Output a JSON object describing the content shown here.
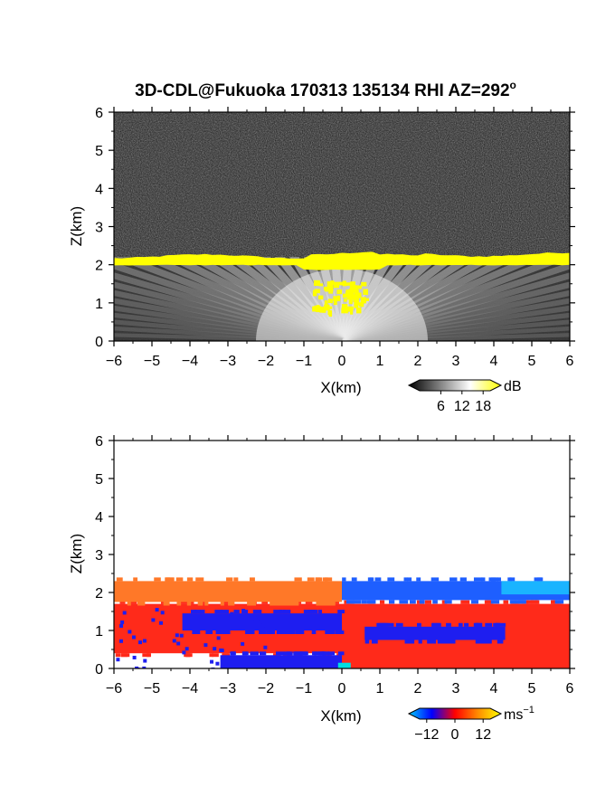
{
  "title": "3D-CDL@Fukuoka 170313 135134 RHI AZ=292",
  "title_superscript": "o",
  "chart_data": [
    {
      "type": "heatmap",
      "variable": "signal intensity",
      "xlabel": "X(km)",
      "ylabel": "Z(km)",
      "xlim": [
        -6,
        6
      ],
      "ylim": [
        0,
        6
      ],
      "xticks": [
        "−6",
        "−5",
        "−4",
        "−3",
        "−2",
        "−1",
        "0",
        "1",
        "2",
        "3",
        "4",
        "5",
        "6"
      ],
      "yticks": [
        "0",
        "1",
        "2",
        "3",
        "4",
        "5",
        "6"
      ],
      "grid": false,
      "background": "noise (dark gray) above 2.2 km",
      "features": [
        {
          "name": "bright layer",
          "z_base_km": [
            2.0,
            2.2
          ],
          "color": "#ffff00"
        },
        {
          "name": "fan of bright rays",
          "x_center_km": 0,
          "z_range_km": [
            0,
            1.9
          ],
          "color": "#e8e8e8"
        },
        {
          "name": "yellow speckles",
          "x_range_km": [
            -0.8,
            0.6
          ],
          "z_range_km": [
            0.8,
            1.6
          ],
          "color": "#ffff00"
        }
      ],
      "colorbar": {
        "unit": "dB",
        "ticks": [
          "6",
          "12",
          "18"
        ],
        "tick_values": [
          6,
          12,
          18
        ],
        "range": [
          0,
          20
        ],
        "colors": [
          "#000000",
          "#808080",
          "#ffffff",
          "#ffff00"
        ]
      }
    },
    {
      "type": "heatmap",
      "variable": "radial velocity",
      "xlabel": "X(km)",
      "ylabel": "Z(km)",
      "xlim": [
        -6,
        6
      ],
      "ylim": [
        0,
        6
      ],
      "xticks": [
        "−6",
        "−5",
        "−4",
        "−3",
        "−2",
        "−1",
        "0",
        "1",
        "2",
        "3",
        "4",
        "5",
        "6"
      ],
      "yticks": [
        "0",
        "1",
        "2",
        "3",
        "4",
        "5",
        "6"
      ],
      "grid": false,
      "layers": [
        {
          "x_range_km": [
            -6,
            0
          ],
          "z_range_km": [
            1.75,
            2.3
          ],
          "velocity_ms": 9,
          "color": "#ff7828"
        },
        {
          "x_range_km": [
            0,
            6
          ],
          "z_range_km": [
            1.8,
            2.3
          ],
          "velocity_ms": -10,
          "color": "#1e5fff"
        },
        {
          "x_range_km": [
            -4.2,
            0
          ],
          "z_range_km": [
            1.0,
            1.45
          ],
          "velocity_ms": -12,
          "color": "#1e1ef0"
        },
        {
          "x_range_km": [
            0.6,
            4.3
          ],
          "z_range_km": [
            0.75,
            1.1
          ],
          "velocity_ms": -12,
          "color": "#1e1ef0"
        },
        {
          "x_range_km": [
            -3.2,
            0
          ],
          "z_range_km": [
            0,
            0.35
          ],
          "velocity_ms": -12,
          "color": "#1e1ef0"
        },
        {
          "x_range_km": [
            -6,
            0
          ],
          "z_range_km": [
            0.4,
            1.7
          ],
          "velocity_ms": 2,
          "color": "#ff2a1a"
        },
        {
          "x_range_km": [
            0,
            6
          ],
          "z_range_km": [
            0,
            1.7
          ],
          "velocity_ms": 2,
          "color": "#ff2a1a"
        }
      ],
      "colorbar": {
        "unit": "ms",
        "unit_superscript": "−1",
        "ticks": [
          "−12",
          "0",
          "12"
        ],
        "tick_values": [
          -12,
          0,
          12
        ],
        "range": [
          -15,
          15
        ],
        "colors": [
          "#00c8ff",
          "#0000ff",
          "#ff0000",
          "#ff8c00",
          "#ffff00"
        ]
      }
    }
  ]
}
